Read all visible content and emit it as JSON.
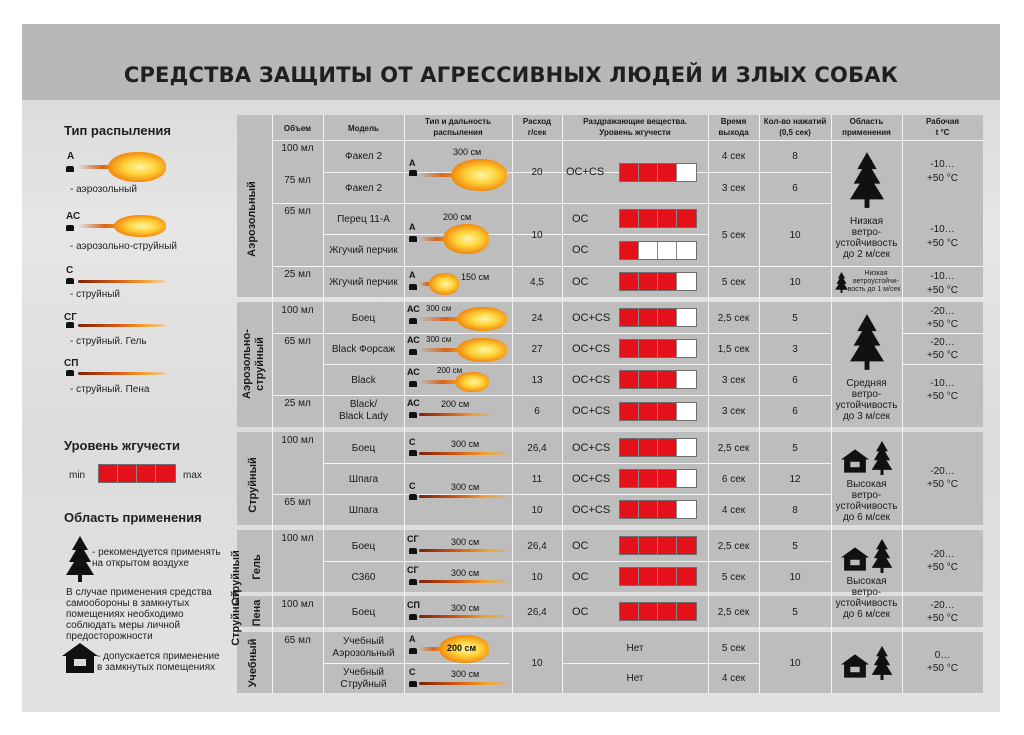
{
  "title": "СРЕДСТВА ЗАЩИТЫ ОТ АГРЕССИВНЫХ ЛЮДЕЙ И ЗЛЫХ СОБАК",
  "legend": {
    "spray_heading": "Тип распыления",
    "spray_types": [
      {
        "code": "А",
        "label": "- аэрозольный"
      },
      {
        "code": "АС",
        "label": "- аэрозольно-струйный"
      },
      {
        "code": "С",
        "label": "- струйный"
      },
      {
        "code": "СГ",
        "label": "- струйный. Гель"
      },
      {
        "code": "СП",
        "label": "- струйный. Пена"
      }
    ],
    "level_heading": "Уровень жгучести",
    "level_min": "min",
    "level_max": "max",
    "area_heading": "Область применения",
    "outdoor_note_1": "- рекомендуется применять",
    "outdoor_note_2": "на открытом воздухе",
    "warning_1": "В случае применения средства",
    "warning_2": "самообороны в замкнутых",
    "warning_3": "помещениях необходимо",
    "warning_4": "соблюдать меры личной",
    "warning_5": "предосторожности",
    "indoor_note_1": "- допускается применение",
    "indoor_note_2": "в замкнутых помещениях"
  },
  "headers": {
    "volume": "Объем",
    "model": "Модель",
    "type_1": "Тип и дальность",
    "type_2": "распыления",
    "rate_1": "Расход",
    "rate_2": "г/сек",
    "agent_1": "Раздражающие вещества.",
    "agent_2": "Уровень жгучести",
    "time_1": "Время",
    "time_2": "выхода",
    "presses_1": "Кол-во нажатий",
    "presses_2": "(0,5 сек)",
    "area_1": "Область",
    "area_2": "применения",
    "temp_1": "Рабочая",
    "temp_2": "t °C"
  },
  "groups": {
    "aerosol": "Аэрозольный",
    "aerostream_1": "Аэрозольно-",
    "aerostream_2": "струйный",
    "stream": "Струйный",
    "gel_1": "Струйный",
    "gel_2": "Гель",
    "foam_1": "Струйный",
    "foam_2": "Пена",
    "training": "Учебный"
  },
  "rows": [
    {
      "volume": "100 мл",
      "model": "Факел 2",
      "code": "А",
      "dist": "300 см",
      "rate": "20",
      "agent": "ОС+CS",
      "level": 3,
      "time": "4 сек",
      "presses": "8",
      "temp_1": "-10…",
      "temp_2": "+50 °С"
    },
    {
      "volume": "75 мл",
      "model": "Факел 2",
      "code": "",
      "dist": "",
      "rate": "",
      "agent": "",
      "level": 0,
      "time": "3 сек",
      "presses": "6",
      "temp_1": "",
      "temp_2": ""
    },
    {
      "volume": "65 мл",
      "model": "Перец 11-А",
      "code": "А",
      "dist": "200 см",
      "rate": "10",
      "agent": "ОС",
      "level": 4,
      "time": "5 сек",
      "presses": "10",
      "temp_1": "-10…",
      "temp_2": "+50 °С"
    },
    {
      "volume": "",
      "model": "Жгучий перчик",
      "code": "",
      "dist": "",
      "rate": "",
      "agent": "ОС",
      "level": 1,
      "time": "",
      "presses": "",
      "temp_1": "",
      "temp_2": ""
    },
    {
      "volume": "25 мл",
      "model": "Жгучий перчик",
      "code": "А",
      "dist": "150 см",
      "rate": "4,5",
      "agent": "ОС",
      "level": 3,
      "time": "5 сек",
      "presses": "10",
      "temp_1": "-10…",
      "temp_2": "+50 °С"
    },
    {
      "volume": "100 мл",
      "model": "Боец",
      "code": "АС",
      "dist": "300 см",
      "rate": "24",
      "agent": "ОС+CS",
      "level": 3,
      "time": "2,5 сек",
      "presses": "5",
      "temp_1": "-20…",
      "temp_2": "+50 °С"
    },
    {
      "volume": "65 мл",
      "model": "Black Форсаж",
      "code": "АС",
      "dist": "300 см",
      "rate": "27",
      "agent": "ОС+CS",
      "level": 3,
      "time": "1,5 сек",
      "presses": "3",
      "temp_1": "-20…",
      "temp_2": "+50 °С"
    },
    {
      "volume": "",
      "model": "Black",
      "code": "АС",
      "dist": "200 см",
      "rate": "13",
      "agent": "ОС+CS",
      "level": 3,
      "time": "3 сек",
      "presses": "6",
      "temp_1": "-10…",
      "temp_2": "+50 °С"
    },
    {
      "volume": "25 мл",
      "model": "Black/",
      "model_2": "Black Lady",
      "code": "АС",
      "dist": "200 см",
      "rate": "6",
      "agent": "ОС+CS",
      "level": 3,
      "time": "3 сек",
      "presses": "6",
      "temp_1": "",
      "temp_2": ""
    },
    {
      "volume": "100 мл",
      "model": "Боец",
      "code": "С",
      "dist": "300 см",
      "rate": "26,4",
      "agent": "ОС+CS",
      "level": 3,
      "time": "2,5 сек",
      "presses": "5",
      "temp_1": "-20…",
      "temp_2": "+50 °С"
    },
    {
      "volume": "",
      "model": "Шпага",
      "code": "С",
      "dist": "300 см",
      "rate": "11",
      "agent": "ОС+CS",
      "level": 3,
      "time": "6 сек",
      "presses": "12",
      "temp_1": "",
      "temp_2": ""
    },
    {
      "volume": "65 мл",
      "model": "Шпага",
      "code": "",
      "dist": "",
      "rate": "10",
      "agent": "ОС+CS",
      "level": 3,
      "time": "4 сек",
      "presses": "8",
      "temp_1": "",
      "temp_2": ""
    },
    {
      "volume": "100 мл",
      "model": "Боец",
      "code": "СГ",
      "dist": "300 см",
      "rate": "26,4",
      "agent": "ОС",
      "level": 4,
      "time": "2,5 сек",
      "presses": "5",
      "temp_1": "-20…",
      "temp_2": "+50 °С"
    },
    {
      "volume": "",
      "model": "С360",
      "code": "СГ",
      "dist": "300 см",
      "rate": "10",
      "agent": "ОС",
      "level": 4,
      "time": "5 сек",
      "presses": "10",
      "temp_1": "",
      "temp_2": ""
    },
    {
      "volume": "100 мл",
      "model": "Боец",
      "code": "СП",
      "dist": "300 см",
      "rate": "26,4",
      "agent": "ОС",
      "level": 4,
      "time": "2,5 сек",
      "presses": "5",
      "temp_1": "-20…",
      "temp_2": "+50 °С"
    },
    {
      "volume": "65 мл",
      "model": "Учебный",
      "model_2": "Аэрозольный",
      "code": "А",
      "dist": "200 см",
      "rate": "10",
      "agent": "Нет",
      "level": 0,
      "time": "5 сек",
      "presses": "10",
      "temp_1": "0…",
      "temp_2": "+50 °С"
    },
    {
      "volume": "",
      "model": "Учебный",
      "model_2": "Струйный",
      "code": "С",
      "dist": "300 см",
      "rate": "",
      "agent": "Нет",
      "level": 0,
      "time": "4 сек",
      "presses": "",
      "temp_1": "",
      "temp_2": ""
    }
  ],
  "areas": {
    "low_1": "Низкая",
    "low_2": "ветро-",
    "low_3": "устойчивость",
    "low_4": "до 2 м/сек",
    "low_small_1": "Низкая",
    "low_small_2": "ветроустойчи-",
    "low_small_3": "вость до 1 м/сек",
    "mid_1": "Средняя",
    "mid_2": "ветро-",
    "mid_3": "устойчивость",
    "mid_4": "до 3 м/сек",
    "high_1": "Высокая",
    "high_2": "ветро-",
    "high_3": "устойчивость",
    "high_4": "до 6 м/сек"
  },
  "colors": {
    "level_on": "#e4101a",
    "band": "#b7b7b7",
    "table": "#bdbdbd"
  }
}
